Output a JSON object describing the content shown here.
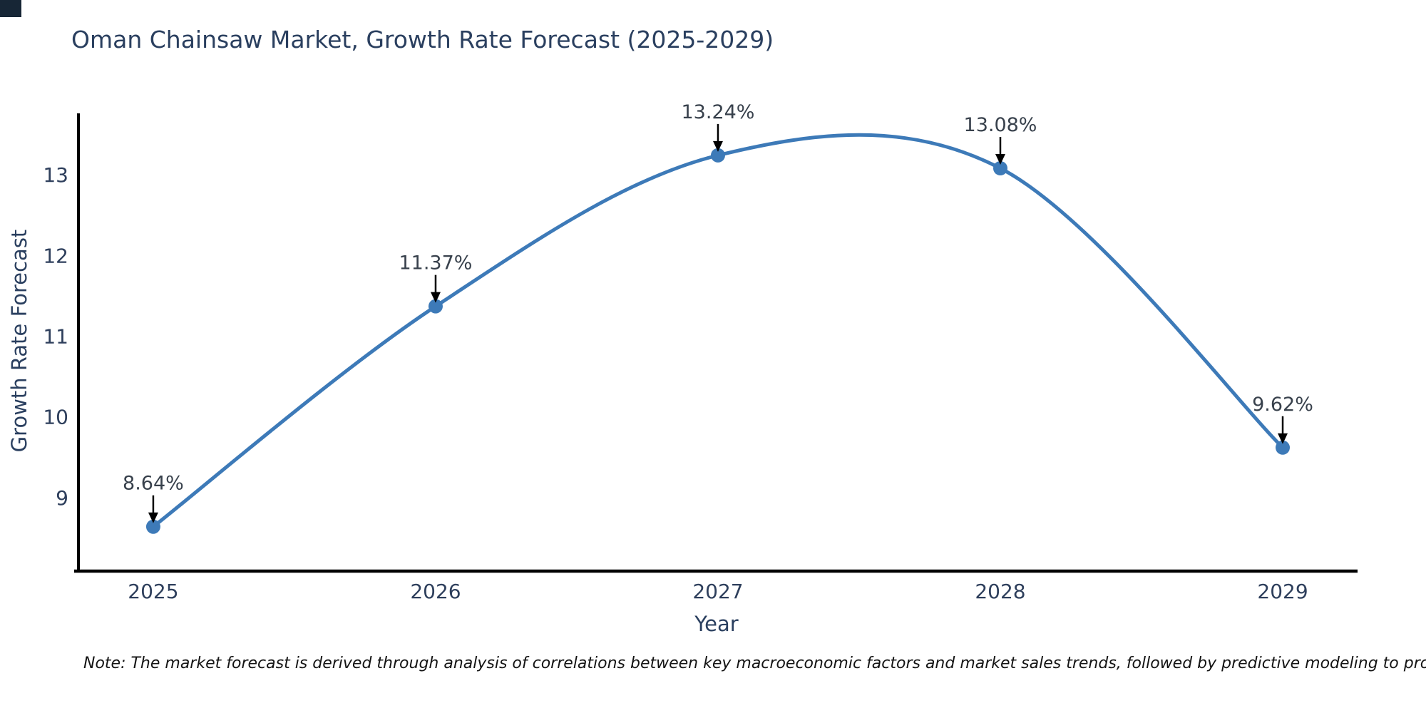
{
  "chart_data": {
    "type": "line",
    "title": "Oman Chainsaw Market, Growth Rate Forecast (2025-2029)",
    "xlabel": "Year",
    "ylabel": "Growth Rate Forecast",
    "x": [
      2025,
      2026,
      2027,
      2028,
      2029
    ],
    "values": [
      8.64,
      11.37,
      13.24,
      13.08,
      9.62
    ],
    "point_labels": [
      "8.64%",
      "11.37%",
      "13.24%",
      "13.08%",
      "9.62%"
    ],
    "x_tick_labels": [
      "2025",
      "2026",
      "2027",
      "2028",
      "2029"
    ],
    "y_tick_labels": [
      "9",
      "10",
      "11",
      "12",
      "13"
    ],
    "yticks": [
      9,
      10,
      11,
      12,
      13
    ],
    "xlim": [
      2024.735,
      2029.255
    ],
    "ylim": [
      8.09,
      13.76
    ],
    "line_shape": "spline",
    "grid": false,
    "legend": "none",
    "note": "Note: The market forecast is derived through analysis of correlations between key macroeconomic factors and market sales trends, followed by predictive modeling to project future sales.",
    "colors": {
      "line": "#3d7ab8",
      "marker": "#3d7ab8",
      "axis": "#000000",
      "title_text": "#2a3f5f",
      "tick_text": "#2e3f5c",
      "annotation_text": "#38414c",
      "annotation_arrow": "#000000",
      "note_text": "#141414"
    }
  }
}
